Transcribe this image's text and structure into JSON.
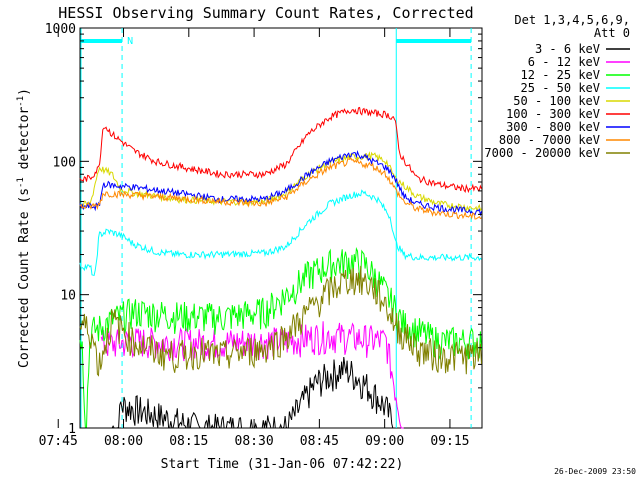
{
  "chart_data": {
    "type": "line",
    "title": "HESSI Observing Summary Count Rates, Corrected",
    "xlabel": "Start Time (31-Jan-06 07:42:22)",
    "ylabel_main": "Corrected Count Rate (s",
    "ylabel_sup1": "-1",
    "ylabel_mid": " detector",
    "ylabel_sup2": "-1",
    "ylabel_end": ")",
    "yscale": "log",
    "xlim_minutes": [
      7.6333,
      100
    ],
    "ylim": [
      1,
      1000
    ],
    "xtick_labels": [
      "07:45",
      "08:00",
      "08:15",
      "08:30",
      "08:45",
      "09:00",
      "09:15"
    ],
    "xtick_minutes": [
      2.633,
      17.633,
      32.633,
      47.633,
      62.633,
      77.633,
      92.633
    ],
    "ytick_labels": [
      "1",
      "10",
      "100",
      "1000"
    ],
    "ytick_values": [
      1,
      10,
      100,
      1000
    ],
    "legend_title_1": "Det 1,3,4,5,6,9,",
    "legend_title_2": "Att 0",
    "legend_placement": "right",
    "series": [
      {
        "name": "3 - 6 keV",
        "color": "#000000",
        "x": [
          15.0,
          16.5,
          17.0,
          35,
          55,
          58,
          60,
          62,
          65,
          68,
          70,
          72,
          74,
          76,
          78,
          80
        ],
        "y": [
          1.0,
          1.0,
          1.5,
          1.0,
          1.0,
          1.4,
          1.8,
          2.2,
          2.5,
          2.8,
          2.6,
          2.3,
          2.0,
          1.7,
          1.4,
          1.0
        ]
      },
      {
        "name": "6 - 12 keV",
        "color": "#ff00ff",
        "x": [
          12.5,
          15,
          20,
          30,
          40,
          50,
          55,
          60,
          65,
          70,
          75,
          78,
          80,
          82
        ],
        "y": [
          4.3,
          4.3,
          4.5,
          4.4,
          4.4,
          4.5,
          4.5,
          4.8,
          5.0,
          4.8,
          4.6,
          4.5,
          2.0,
          1.0
        ]
      },
      {
        "name": "12 - 25 keV",
        "color": "#00ff00",
        "x": [
          0,
          5,
          8,
          9,
          10,
          12,
          15,
          20,
          30,
          40,
          50,
          55,
          60,
          65,
          70,
          73,
          76,
          79,
          82,
          90,
          100
        ],
        "y": [
          4.8,
          5.0,
          5.0,
          1.0,
          5.3,
          5.6,
          6.5,
          7.5,
          7.0,
          6.8,
          7.5,
          10,
          14,
          17,
          18,
          17,
          13,
          9,
          6,
          4.5,
          4.5
        ]
      },
      {
        "name": "25 - 50 keV",
        "color": "#00ffff",
        "x": [
          0,
          5,
          10,
          11,
          12,
          14,
          17,
          20,
          25,
          30,
          40,
          50,
          55,
          60,
          65,
          70,
          73,
          76,
          79,
          80,
          82,
          85,
          90,
          95,
          100
        ],
        "y": [
          17,
          17,
          16,
          13,
          28,
          30,
          28,
          24,
          21,
          20,
          20,
          20.5,
          23,
          35,
          48,
          56,
          58,
          52,
          38,
          25,
          20,
          19,
          19,
          19,
          19
        ]
      },
      {
        "name": "50 - 100 keV",
        "color": "#d8d800",
        "x": [
          0,
          5,
          10,
          12,
          15,
          17,
          20,
          30,
          40,
          50,
          55,
          60,
          65,
          70,
          75,
          78,
          80,
          85,
          90,
          100
        ],
        "y": [
          45,
          46,
          48,
          90,
          80,
          62,
          58,
          52,
          50,
          50,
          58,
          80,
          98,
          108,
          110,
          100,
          75,
          55,
          48,
          44
        ]
      },
      {
        "name": "100 - 300 keV",
        "color": "#ff0000",
        "x": [
          0,
          5,
          10,
          12,
          13,
          15,
          20,
          25,
          30,
          40,
          50,
          55,
          60,
          65,
          70,
          75,
          78,
          80,
          81,
          85,
          90,
          95,
          100
        ],
        "y": [
          68,
          70,
          75,
          90,
          190,
          160,
          120,
          100,
          92,
          80,
          80,
          95,
          160,
          215,
          245,
          230,
          225,
          210,
          115,
          75,
          67,
          63,
          62
        ]
      },
      {
        "name": "300 - 800 keV",
        "color": "#0000ff",
        "x": [
          0,
          5,
          10,
          12,
          13,
          15,
          20,
          30,
          40,
          50,
          55,
          60,
          65,
          70,
          72,
          75,
          78,
          80,
          82,
          85,
          90,
          95,
          100
        ],
        "y": [
          44,
          45,
          46,
          46,
          68,
          66,
          64,
          58,
          52,
          52,
          60,
          80,
          100,
          115,
          112,
          100,
          90,
          75,
          55,
          48,
          45,
          43,
          42
        ]
      },
      {
        "name": "800 - 7000 keV",
        "color": "#ff8800",
        "x": [
          0,
          5,
          10,
          12,
          13,
          15,
          20,
          30,
          40,
          50,
          55,
          60,
          65,
          70,
          75,
          78,
          80,
          82,
          85,
          90,
          100
        ],
        "y": [
          42,
          45,
          46,
          47,
          58,
          57,
          56,
          53,
          50,
          48,
          54,
          72,
          90,
          100,
          92,
          80,
          62,
          50,
          44,
          41,
          38
        ]
      },
      {
        "name": "7000 - 20000 keV",
        "color": "#808000",
        "x": [
          0,
          3,
          6,
          8,
          10,
          12,
          15,
          20,
          25,
          30,
          35,
          40,
          45,
          50,
          55,
          60,
          63,
          66,
          70,
          72,
          75,
          78,
          80,
          85,
          90,
          95,
          100
        ],
        "y": [
          3.5,
          5.5,
          4.3,
          6.0,
          5.5,
          3.0,
          6.5,
          4.5,
          3.8,
          3.5,
          3.8,
          3.5,
          3.8,
          4.0,
          5.0,
          7.5,
          9.5,
          11.5,
          13.5,
          13,
          11.5,
          8.5,
          6,
          4.0,
          3.5,
          3.5,
          3.5
        ]
      }
    ],
    "vertical_lines": [
      {
        "x_minutes": 17.3,
        "color": "#00ffff",
        "style": "dashed"
      },
      {
        "x_minutes": 97.5,
        "color": "#00ffff",
        "style": "dashed"
      },
      {
        "x_minutes": 0.0,
        "color": "#00ffff",
        "style": "solid"
      },
      {
        "x_minutes": 80.3,
        "color": "#00ffff",
        "style": "solid"
      }
    ],
    "night_bars": [
      {
        "start_minutes": 0.0,
        "end_minutes": 17.3,
        "label": "N"
      },
      {
        "start_minutes": 80.3,
        "end_minutes": 97.5,
        "label": ""
      }
    ],
    "timestamp": "26-Dec-2009 23:50"
  }
}
